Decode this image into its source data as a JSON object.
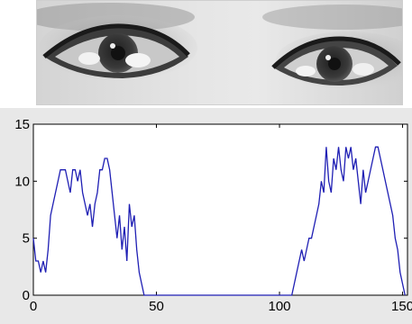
{
  "image": {
    "icon": "eye-region-photo",
    "colors": {
      "skin": "#dedede",
      "shadow": "#5a5a5a",
      "iris": "#2e2e2e",
      "highlight": "#f2f2f2"
    }
  },
  "chart_data": {
    "type": "line",
    "title": "",
    "xlabel": "",
    "ylabel": "",
    "xlim": [
      0,
      152
    ],
    "ylim": [
      0,
      15
    ],
    "xticks": [
      0,
      50,
      100,
      150
    ],
    "yticks": [
      0,
      5,
      10,
      15
    ],
    "grid": false,
    "colors": {
      "line": "#1f1fb4",
      "axes_bg": "#ffffff",
      "figure_bg": "#e8e8e8",
      "axis": "#000000"
    },
    "series": [
      {
        "x": [
          0,
          1,
          2,
          3,
          4,
          5,
          6,
          7,
          8,
          9,
          10,
          11,
          12,
          13,
          14,
          15,
          16,
          17,
          18,
          19,
          20,
          21,
          22,
          23,
          24,
          25,
          26,
          27,
          28,
          29,
          30,
          31,
          32,
          33,
          34,
          35,
          36,
          37,
          38,
          39,
          40,
          41,
          42,
          43,
          44,
          45,
          50,
          60,
          70,
          80,
          90,
          100,
          104,
          105,
          106,
          107,
          108,
          109,
          110,
          111,
          112,
          113,
          114,
          115,
          116,
          117,
          118,
          119,
          120,
          121,
          122,
          123,
          124,
          125,
          126,
          127,
          128,
          129,
          130,
          131,
          132,
          133,
          134,
          135,
          136,
          137,
          138,
          139,
          140,
          141,
          142,
          143,
          144,
          145,
          146,
          147,
          148,
          149,
          150,
          151
        ],
        "y": [
          5,
          3,
          3,
          2,
          3,
          2,
          4,
          7,
          8,
          9,
          10,
          11,
          11,
          11,
          10,
          9,
          11,
          11,
          10,
          11,
          9,
          8,
          7,
          8,
          6,
          8,
          9,
          11,
          11,
          12,
          12,
          11,
          9,
          7,
          5,
          7,
          4,
          6,
          3,
          8,
          6,
          7,
          4,
          2,
          1,
          0,
          0,
          0,
          0,
          0,
          0,
          0,
          0,
          0,
          1,
          2,
          3,
          4,
          3,
          4,
          5,
          5,
          6,
          7,
          8,
          10,
          9,
          13,
          10,
          9,
          12,
          11,
          13,
          11,
          10,
          13,
          12,
          13,
          11,
          12,
          10,
          8,
          11,
          9,
          10,
          11,
          12,
          13,
          13,
          12,
          11,
          10,
          9,
          8,
          7,
          5,
          4,
          2,
          1,
          0
        ]
      }
    ]
  }
}
